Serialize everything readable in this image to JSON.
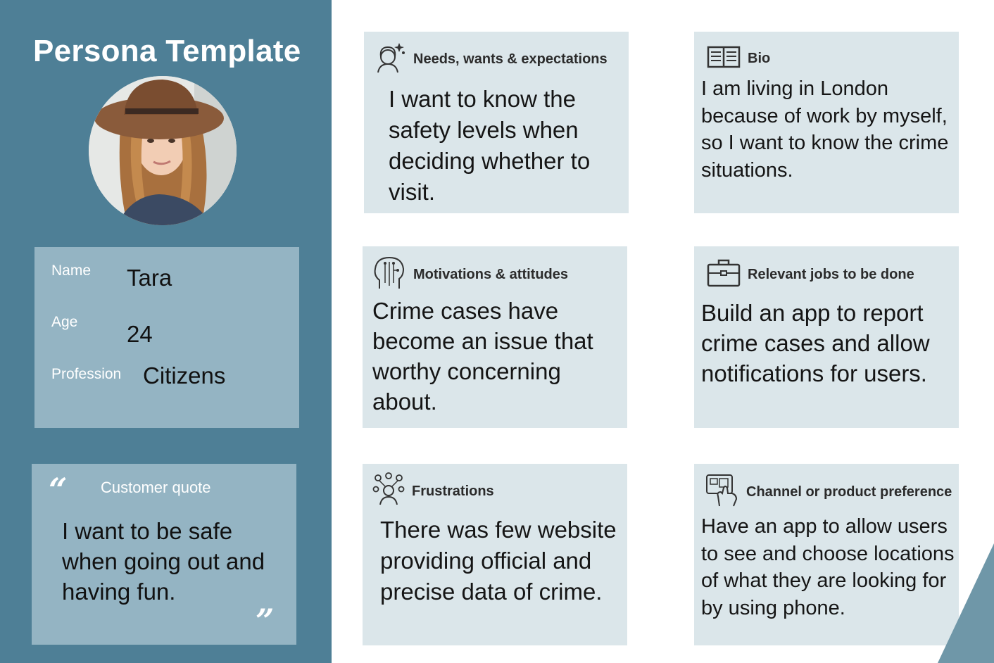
{
  "left": {
    "title": "Persona Template",
    "info": {
      "name_label": "Name",
      "name_value": "Tara",
      "age_label": "Age",
      "age_value": "24",
      "profession_label": "Profession",
      "profession_value": "Citizens"
    },
    "quote": {
      "open_mark": "“",
      "title": "Customer quote",
      "text": "I want to be safe when going out and having fun.",
      "close_mark": "”"
    }
  },
  "cards": {
    "needs": {
      "icon": "woman-sparkle-icon",
      "title": "Needs, wants & expectations",
      "body": "I want to know the safety levels when deciding whether to visit."
    },
    "bio": {
      "icon": "book-icon",
      "title": "Bio",
      "body": "I am living in London because of work by myself, so I want to know the crime situations."
    },
    "motivations": {
      "icon": "head-circuit-icon",
      "title": "Motivations & attitudes",
      "body": "Crime cases have become an issue that worthy concerning about."
    },
    "jobs": {
      "icon": "briefcase-icon",
      "title": "Relevant jobs to be done",
      "body": "Build an app to report crime cases and allow notifications for users."
    },
    "frustrations": {
      "icon": "person-network-icon",
      "title": "Frustrations",
      "body": "There was few website providing official and precise data of crime."
    },
    "channel": {
      "icon": "hand-device-icon",
      "title": "Channel or product preference",
      "body": "Have an app to allow users to see and choose locations of what they are looking for by using phone."
    }
  },
  "colors": {
    "panel": "#4e7f96",
    "box": "#94b4c3",
    "card": "#dbe6ea"
  }
}
